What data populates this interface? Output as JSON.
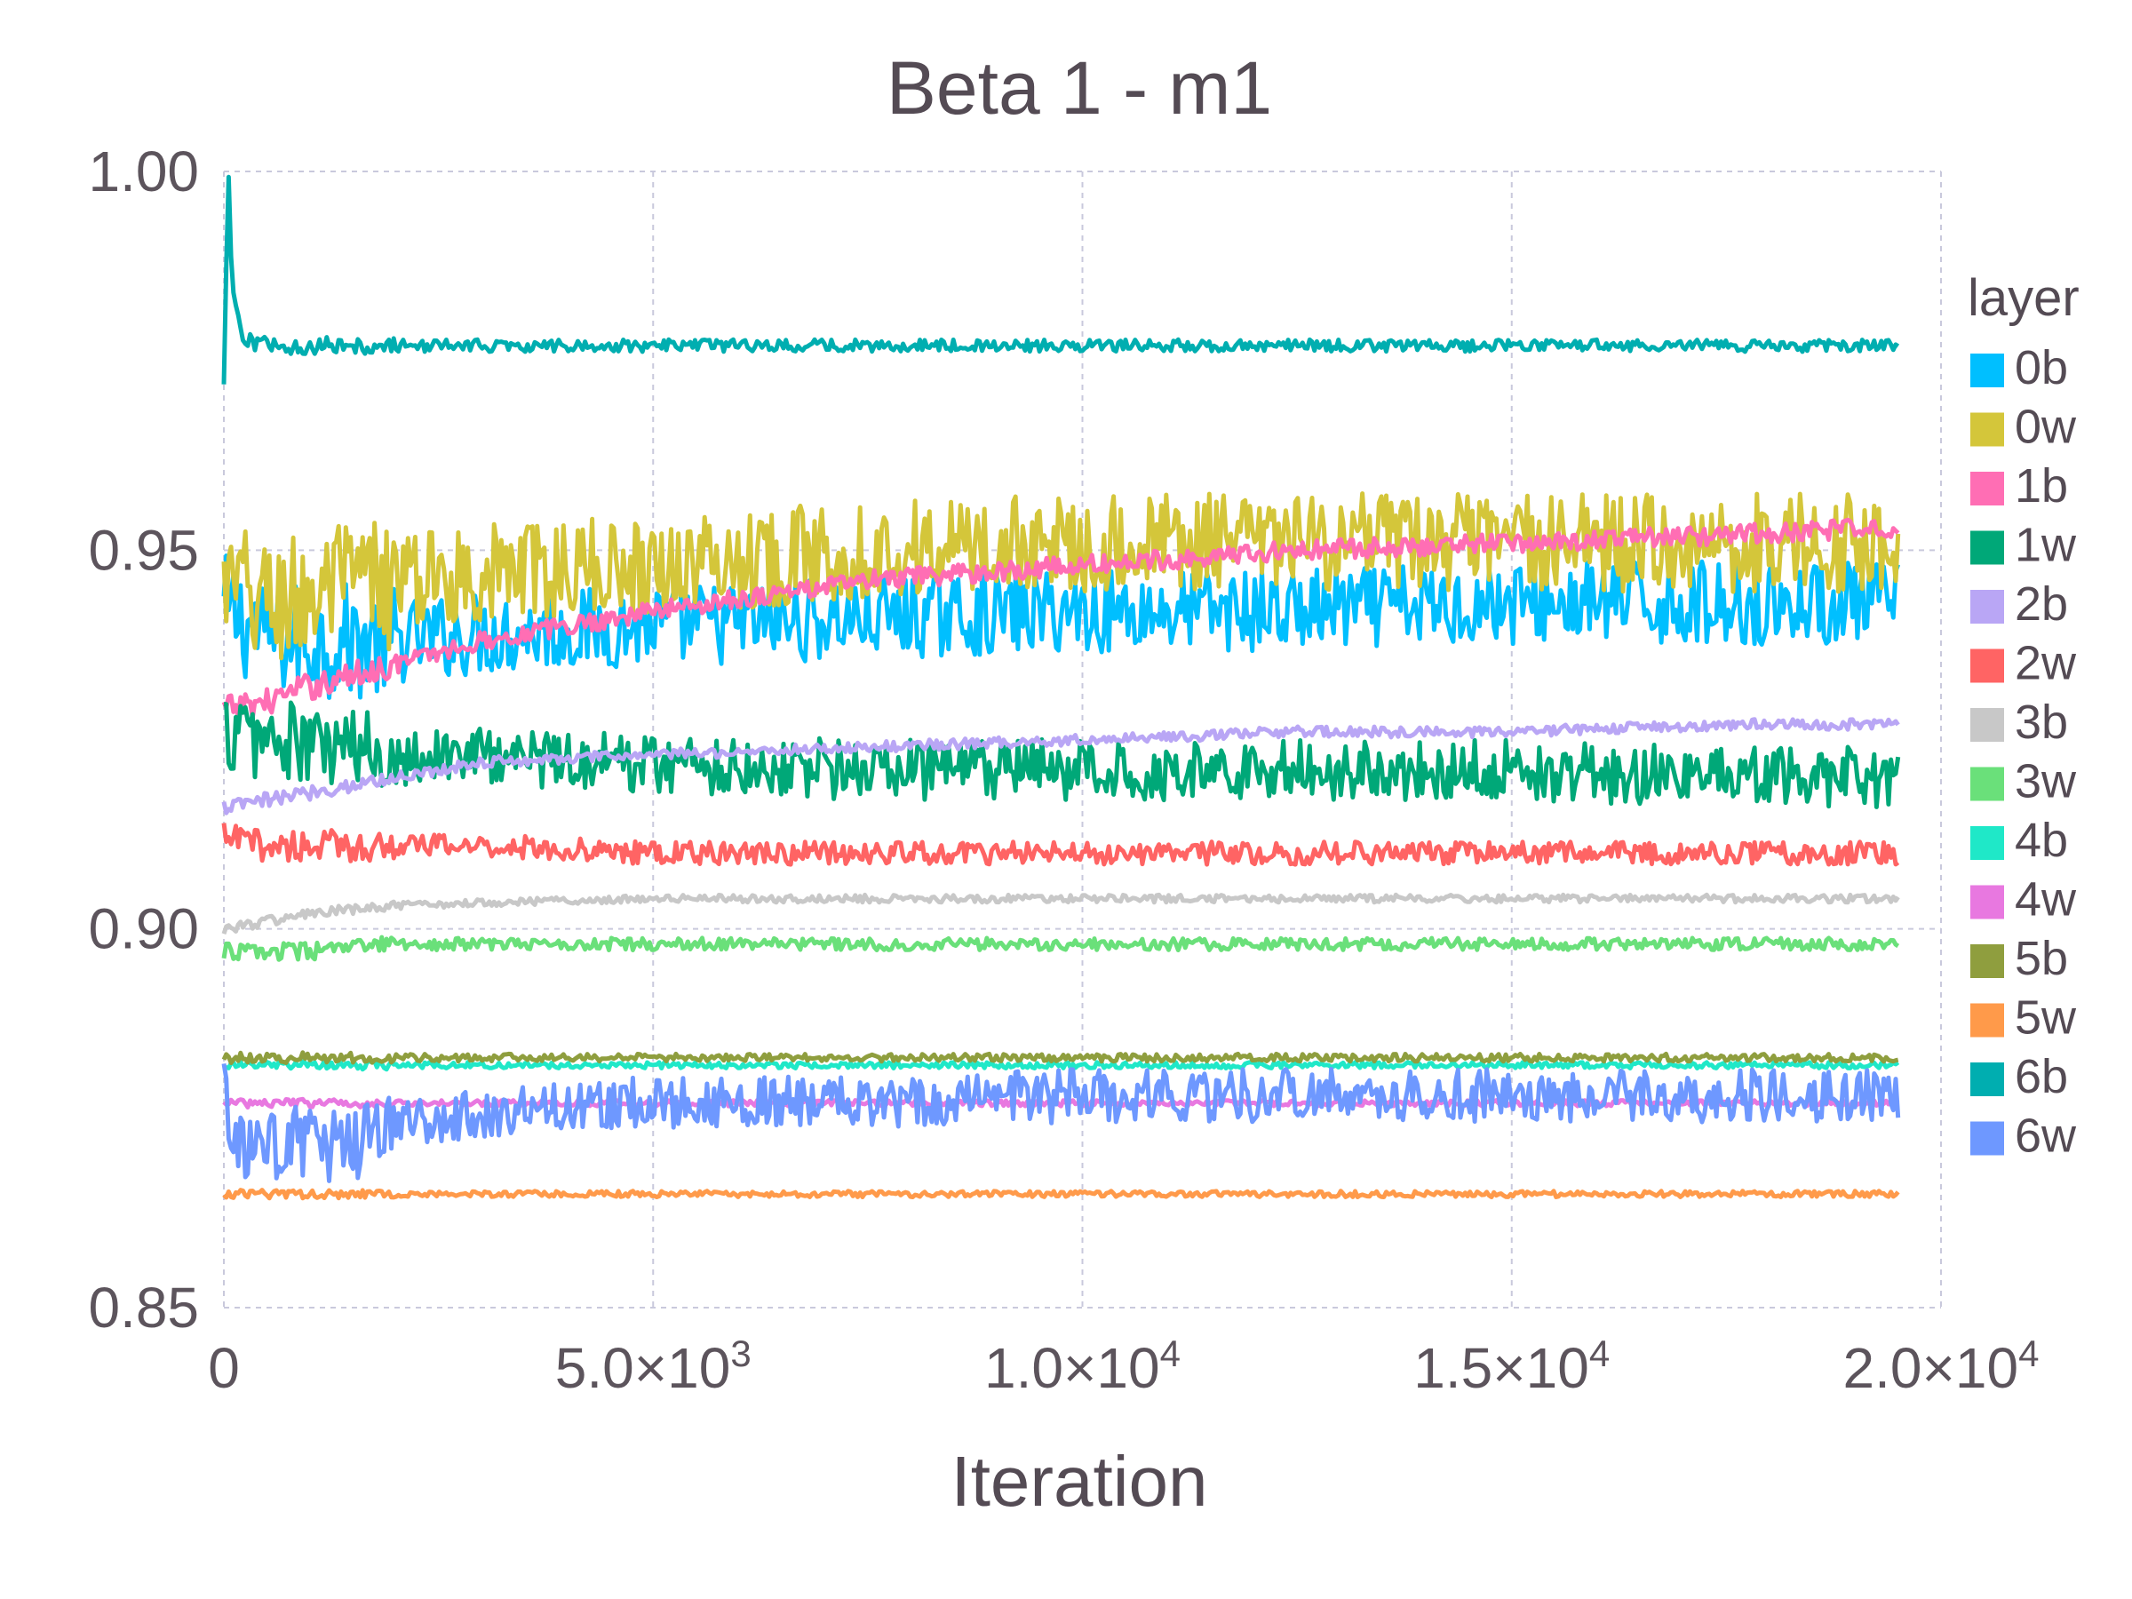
{
  "chart_data": {
    "type": "line",
    "title": "Beta 1 - m1",
    "xlabel": "Iteration",
    "ylabel": "",
    "xlim": [
      0,
      20000
    ],
    "ylim": [
      0.85,
      1.0
    ],
    "x_ticks": [
      {
        "value": 0,
        "label": "0",
        "sup": ""
      },
      {
        "value": 5000,
        "label": "5.0×10",
        "sup": "3"
      },
      {
        "value": 10000,
        "label": "1.0×10",
        "sup": "4"
      },
      {
        "value": 15000,
        "label": "1.5×10",
        "sup": "4"
      },
      {
        "value": 20000,
        "label": "2.0×10",
        "sup": "4"
      }
    ],
    "y_ticks": [
      {
        "value": 0.85,
        "label": "0.85"
      },
      {
        "value": 0.9,
        "label": "0.90"
      },
      {
        "value": 0.95,
        "label": "0.95"
      },
      {
        "value": 1.0,
        "label": "1.00"
      }
    ],
    "grid": true,
    "legend": {
      "title": "layer",
      "position": "right"
    },
    "series": [
      {
        "name": "0b",
        "color": "#00bfff",
        "x": [
          0,
          500,
          1000,
          2000,
          3000,
          5000,
          7500,
          10000,
          12500,
          15000,
          17500,
          19500
        ],
        "y": [
          0.942,
          0.939,
          0.938,
          0.938,
          0.939,
          0.94,
          0.941,
          0.942,
          0.942,
          0.943,
          0.943,
          0.943
        ],
        "noise": 0.0055
      },
      {
        "name": "0w",
        "color": "#d4c63a",
        "x": [
          0,
          500,
          1000,
          2000,
          3000,
          5000,
          7500,
          10000,
          12500,
          15000,
          17500,
          19500
        ],
        "y": [
          0.945,
          0.943,
          0.944,
          0.946,
          0.947,
          0.948,
          0.95,
          0.951,
          0.951,
          0.951,
          0.951,
          0.951
        ],
        "noise": 0.0065
      },
      {
        "name": "1b",
        "color": "#ff6eb4",
        "x": [
          0,
          500,
          1000,
          2000,
          3000,
          5000,
          7500,
          10000,
          12500,
          15000,
          17500,
          19500
        ],
        "y": [
          0.929,
          0.93,
          0.932,
          0.935,
          0.938,
          0.942,
          0.946,
          0.948,
          0.95,
          0.951,
          0.952,
          0.953
        ],
        "noise": 0.0013
      },
      {
        "name": "1w",
        "color": "#00a878",
        "x": [
          0,
          500,
          1000,
          2000,
          3000,
          5000,
          7500,
          10000,
          12500,
          15000,
          17500,
          19500
        ],
        "y": [
          0.926,
          0.925,
          0.924,
          0.923,
          0.923,
          0.922,
          0.921,
          0.921,
          0.921,
          0.921,
          0.92,
          0.92
        ],
        "noise": 0.004
      },
      {
        "name": "2b",
        "color": "#b9a6f5",
        "x": [
          0,
          500,
          1000,
          2000,
          3000,
          5000,
          7500,
          10000,
          12500,
          15000,
          17500,
          19500
        ],
        "y": [
          0.916,
          0.917,
          0.918,
          0.92,
          0.922,
          0.923,
          0.924,
          0.925,
          0.926,
          0.926,
          0.927,
          0.927
        ],
        "noise": 0.0007
      },
      {
        "name": "2w",
        "color": "#ff6464",
        "x": [
          0,
          500,
          1000,
          2000,
          3000,
          5000,
          7500,
          10000,
          12500,
          15000,
          17500,
          19500
        ],
        "y": [
          0.912,
          0.911,
          0.911,
          0.911,
          0.911,
          0.91,
          0.91,
          0.91,
          0.91,
          0.91,
          0.91,
          0.91
        ],
        "noise": 0.0015
      },
      {
        "name": "3b",
        "color": "#c8c8c8",
        "x": [
          0,
          500,
          1000,
          2000,
          3000,
          5000,
          7500,
          10000,
          12500,
          15000,
          17500,
          19500
        ],
        "y": [
          0.9,
          0.901,
          0.902,
          0.903,
          0.9035,
          0.904,
          0.904,
          0.904,
          0.904,
          0.904,
          0.904,
          0.904
        ],
        "noise": 0.0005
      },
      {
        "name": "3w",
        "color": "#6ae07a",
        "x": [
          0,
          500,
          1000,
          2000,
          3000,
          5000,
          7500,
          10000,
          12500,
          15000,
          17500,
          19500
        ],
        "y": [
          0.897,
          0.897,
          0.897,
          0.898,
          0.898,
          0.898,
          0.898,
          0.898,
          0.898,
          0.898,
          0.898,
          0.898
        ],
        "noise": 0.0008
      },
      {
        "name": "4b",
        "color": "#1fe8c8",
        "x": [
          0,
          500,
          1000,
          2000,
          3000,
          5000,
          7500,
          10000,
          12500,
          15000,
          17500,
          19500
        ],
        "y": [
          0.882,
          0.882,
          0.882,
          0.882,
          0.882,
          0.882,
          0.882,
          0.882,
          0.882,
          0.882,
          0.882,
          0.882
        ],
        "noise": 0.0004
      },
      {
        "name": "4w",
        "color": "#e878e0",
        "x": [
          0,
          500,
          1000,
          2000,
          3000,
          5000,
          7500,
          10000,
          12500,
          15000,
          17500,
          19500
        ],
        "y": [
          0.877,
          0.877,
          0.877,
          0.877,
          0.877,
          0.877,
          0.877,
          0.877,
          0.877,
          0.877,
          0.877,
          0.877
        ],
        "noise": 0.0004
      },
      {
        "name": "5b",
        "color": "#8f9e3e",
        "x": [
          0,
          500,
          1000,
          2000,
          3000,
          5000,
          7500,
          10000,
          12500,
          15000,
          17500,
          19500
        ],
        "y": [
          0.883,
          0.883,
          0.883,
          0.883,
          0.883,
          0.883,
          0.883,
          0.883,
          0.883,
          0.883,
          0.883,
          0.883
        ],
        "noise": 0.0005
      },
      {
        "name": "5w",
        "color": "#ff9a4a",
        "x": [
          0,
          500,
          1000,
          2000,
          3000,
          5000,
          7500,
          10000,
          12500,
          15000,
          17500,
          19500
        ],
        "y": [
          0.865,
          0.865,
          0.865,
          0.865,
          0.865,
          0.865,
          0.865,
          0.865,
          0.865,
          0.865,
          0.865,
          0.865
        ],
        "noise": 0.0004
      },
      {
        "name": "6b",
        "color": "#00aeb0",
        "x": [
          0,
          50,
          100,
          200,
          500,
          1000,
          2000,
          3000,
          5000,
          10000,
          15000,
          19500
        ],
        "y": [
          0.972,
          1.0,
          0.984,
          0.978,
          0.977,
          0.977,
          0.977,
          0.977,
          0.977,
          0.977,
          0.977,
          0.977
        ],
        "noise": 0.0008
      },
      {
        "name": "6w",
        "color": "#6e98ff",
        "x": [
          0,
          100,
          500,
          1000,
          1500,
          2000,
          3000,
          5000,
          7500,
          10000,
          15000,
          19500
        ],
        "y": [
          0.882,
          0.87,
          0.871,
          0.872,
          0.871,
          0.874,
          0.876,
          0.877,
          0.877,
          0.878,
          0.878,
          0.878
        ],
        "noise": 0.0035
      }
    ]
  }
}
